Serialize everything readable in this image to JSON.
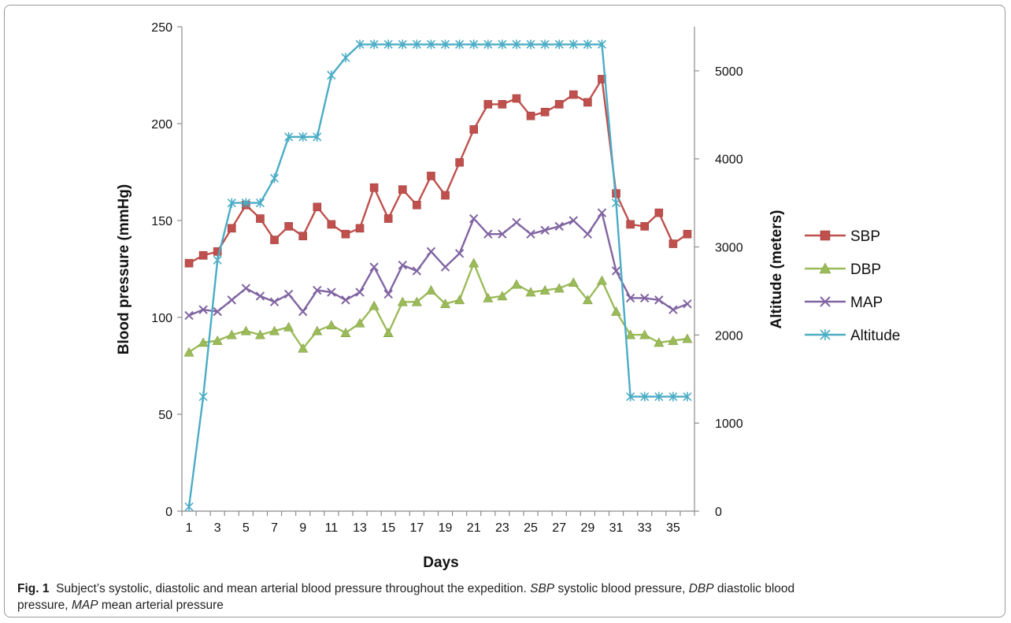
{
  "chart_data": {
    "type": "line",
    "title": "",
    "xlabel": "Days",
    "ylabel_left": "Blood pressure  (mmHg)",
    "ylabel_right": "Altitude (meters)",
    "ylim_left": [
      0,
      250
    ],
    "ylim_right": [
      0,
      5500
    ],
    "yticks_left": [
      0,
      50,
      100,
      150,
      200,
      250
    ],
    "yticks_right": [
      0,
      1000,
      2000,
      3000,
      4000,
      5000
    ],
    "x": [
      1,
      2,
      3,
      4,
      5,
      6,
      7,
      8,
      9,
      10,
      11,
      12,
      13,
      14,
      15,
      16,
      17,
      18,
      19,
      20,
      21,
      22,
      23,
      24,
      25,
      26,
      27,
      28,
      29,
      30,
      31,
      32,
      33,
      34,
      35,
      36
    ],
    "xticks": [
      1,
      3,
      5,
      7,
      9,
      11,
      13,
      15,
      17,
      19,
      21,
      23,
      25,
      27,
      29,
      31,
      33,
      35
    ],
    "xticks_labels": [
      "1",
      "3",
      "5",
      "7",
      "9",
      "11",
      "13",
      "15",
      "17",
      "19",
      "21",
      "23",
      "25",
      "27",
      "29",
      "31",
      "33",
      "35"
    ],
    "grid": false,
    "legend_position": "right",
    "series": [
      {
        "name": "SBP",
        "axis": "left",
        "color": "#c0504d",
        "marker": "square",
        "values": [
          128,
          132,
          134,
          146,
          158,
          151,
          140,
          147,
          142,
          157,
          148,
          143,
          146,
          167,
          151,
          166,
          158,
          173,
          163,
          180,
          197,
          210,
          210,
          213,
          204,
          206,
          210,
          215,
          211,
          223,
          164,
          148,
          147,
          154,
          138,
          143
        ]
      },
      {
        "name": "DBP",
        "axis": "left",
        "color": "#9bbb59",
        "marker": "triangle",
        "values": [
          82,
          87,
          88,
          91,
          93,
          91,
          93,
          95,
          84,
          93,
          96,
          92,
          97,
          106,
          92,
          108,
          108,
          114,
          107,
          109,
          128,
          110,
          111,
          117,
          113,
          114,
          115,
          118,
          109,
          119,
          103,
          91,
          91,
          87,
          88,
          89
        ]
      },
      {
        "name": "MAP",
        "axis": "left",
        "color": "#8064a2",
        "marker": "x",
        "values": [
          101,
          104,
          103,
          109,
          115,
          111,
          108,
          112,
          103,
          114,
          113,
          109,
          113,
          126,
          112,
          127,
          124,
          134,
          126,
          133,
          151,
          143,
          143,
          149,
          143,
          145,
          147,
          150,
          143,
          154,
          124,
          110,
          110,
          109,
          104,
          107
        ]
      },
      {
        "name": "Altitude",
        "axis": "right",
        "color": "#4bacc6",
        "marker": "star",
        "values": [
          50,
          1300,
          2850,
          3500,
          3500,
          3500,
          3780,
          4250,
          4250,
          4250,
          4950,
          5150,
          5300,
          5300,
          5300,
          5300,
          5300,
          5300,
          5300,
          5300,
          5300,
          5300,
          5300,
          5300,
          5300,
          5300,
          5300,
          5300,
          5300,
          5300,
          3500,
          1300,
          1300,
          1300,
          1300,
          1300
        ]
      }
    ]
  },
  "caption": {
    "fig_label": "Fig. 1",
    "text": "Subject’s systolic, diastolic and mean arterial blood pressure throughout the expedition.",
    "abbr": [
      {
        "term": "SBP",
        "definition": "systolic blood pressure,"
      },
      {
        "term": "DBP",
        "definition": "diastolic blood"
      },
      {
        "term": "",
        "definition": "pressure,"
      },
      {
        "term": "MAP",
        "definition": "mean arterial pressure"
      }
    ]
  }
}
